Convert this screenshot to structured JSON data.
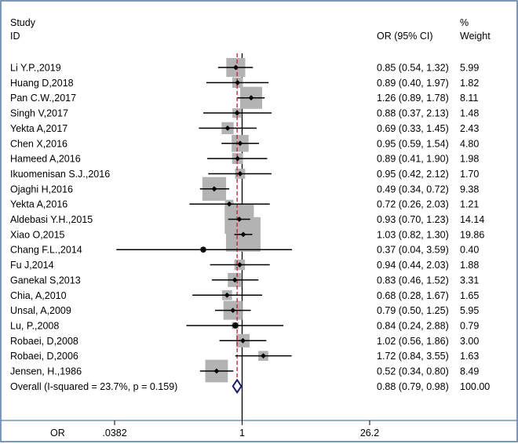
{
  "chart_data": {
    "type": "forest",
    "columns": {
      "study_top": "Study",
      "study_bottom": "ID",
      "effect": "OR (95% CI)",
      "weight_top": "%",
      "weight_bottom": "Weight"
    },
    "studies": [
      {
        "id": "Li Y.P.,2019",
        "or": 0.85,
        "lo": 0.54,
        "hi": 1.32,
        "ci_text": "0.85 (0.54, 1.32)",
        "weight": 5.99,
        "weight_text": "5.99"
      },
      {
        "id": "Huang D,2018",
        "or": 0.89,
        "lo": 0.4,
        "hi": 1.97,
        "ci_text": "0.89 (0.40, 1.97)",
        "weight": 1.82,
        "weight_text": "1.82"
      },
      {
        "id": "Pan C.W.,2017",
        "or": 1.26,
        "lo": 0.89,
        "hi": 1.78,
        "ci_text": "1.26 (0.89, 1.78)",
        "weight": 8.11,
        "weight_text": "8.11"
      },
      {
        "id": "Singh V,2017",
        "or": 0.88,
        "lo": 0.37,
        "hi": 2.13,
        "ci_text": "0.88 (0.37, 2.13)",
        "weight": 1.48,
        "weight_text": "1.48"
      },
      {
        "id": "Yekta A,2017",
        "or": 0.69,
        "lo": 0.33,
        "hi": 1.45,
        "ci_text": "0.69 (0.33, 1.45)",
        "weight": 2.43,
        "weight_text": "2.43"
      },
      {
        "id": "Chen X,2016",
        "or": 0.95,
        "lo": 0.59,
        "hi": 1.54,
        "ci_text": "0.95 (0.59, 1.54)",
        "weight": 4.8,
        "weight_text": "4.80"
      },
      {
        "id": "Hameed A,2016",
        "or": 0.89,
        "lo": 0.41,
        "hi": 1.9,
        "ci_text": "0.89 (0.41, 1.90)",
        "weight": 1.98,
        "weight_text": "1.98"
      },
      {
        "id": "Ikuomenisan S.J.,2016",
        "or": 0.95,
        "lo": 0.42,
        "hi": 2.12,
        "ci_text": "0.95 (0.42, 2.12)",
        "weight": 1.7,
        "weight_text": "1.70"
      },
      {
        "id": "Ojaghi H,2016",
        "or": 0.49,
        "lo": 0.34,
        "hi": 0.72,
        "ci_text": "0.49 (0.34, 0.72)",
        "weight": 9.38,
        "weight_text": "9.38"
      },
      {
        "id": "Yekta A,2016",
        "or": 0.72,
        "lo": 0.26,
        "hi": 2.03,
        "ci_text": "0.72 (0.26, 2.03)",
        "weight": 1.21,
        "weight_text": "1.21"
      },
      {
        "id": "Aldebasi Y.H.,2015",
        "or": 0.93,
        "lo": 0.7,
        "hi": 1.23,
        "ci_text": "0.93 (0.70, 1.23)",
        "weight": 14.14,
        "weight_text": "14.14"
      },
      {
        "id": "Xiao O,2015",
        "or": 1.03,
        "lo": 0.82,
        "hi": 1.3,
        "ci_text": "1.03 (0.82, 1.30)",
        "weight": 19.86,
        "weight_text": "19.86"
      },
      {
        "id": "Chang F.L.,2014",
        "or": 0.37,
        "lo": 0.04,
        "hi": 3.59,
        "ci_text": "0.37 (0.04, 3.59)",
        "weight": 0.4,
        "weight_text": "0.40"
      },
      {
        "id": "Fu J,2014",
        "or": 0.94,
        "lo": 0.44,
        "hi": 2.03,
        "ci_text": "0.94 (0.44, 2.03)",
        "weight": 1.88,
        "weight_text": "1.88"
      },
      {
        "id": "Ganekal S,2013",
        "or": 0.83,
        "lo": 0.46,
        "hi": 1.52,
        "ci_text": "0.83 (0.46, 1.52)",
        "weight": 3.31,
        "weight_text": "3.31"
      },
      {
        "id": "Chia, A,2010",
        "or": 0.68,
        "lo": 0.28,
        "hi": 1.67,
        "ci_text": "0.68 (0.28, 1.67)",
        "weight": 1.65,
        "weight_text": "1.65"
      },
      {
        "id": "Unsal, A,2009",
        "or": 0.79,
        "lo": 0.5,
        "hi": 1.25,
        "ci_text": "0.79 (0.50, 1.25)",
        "weight": 5.95,
        "weight_text": "5.95"
      },
      {
        "id": "Lu, P.,2008",
        "or": 0.84,
        "lo": 0.24,
        "hi": 2.88,
        "ci_text": "0.84 (0.24, 2.88)",
        "weight": 0.79,
        "weight_text": "0.79"
      },
      {
        "id": "Robaei, D,2008",
        "or": 1.02,
        "lo": 0.56,
        "hi": 1.86,
        "ci_text": "1.02 (0.56, 1.86)",
        "weight": 3.0,
        "weight_text": "3.00"
      },
      {
        "id": "Robaei, D,2006",
        "or": 1.72,
        "lo": 0.84,
        "hi": 3.55,
        "ci_text": "1.72 (0.84, 3.55)",
        "weight": 1.63,
        "weight_text": "1.63"
      },
      {
        "id": "Jensen, H.,1986",
        "or": 0.52,
        "lo": 0.34,
        "hi": 0.8,
        "ci_text": "0.52 (0.34, 0.80)",
        "weight": 8.49,
        "weight_text": "8.49"
      }
    ],
    "overall": {
      "label": "Overall  (I-squared = 23.7%, p = 0.159)",
      "or": 0.88,
      "lo": 0.79,
      "hi": 0.98,
      "ci_text": "0.88 (0.79, 0.98)",
      "weight_text": "100.00"
    },
    "x_axis": {
      "label": "OR",
      "scale": "log",
      "min": 0.0382,
      "max": 26.2,
      "ticks": [
        {
          "value": 0.0382,
          "label": ".0382"
        },
        {
          "value": 1,
          "label": "1"
        },
        {
          "value": 26.2,
          "label": "26.2"
        }
      ]
    },
    "reference_line": 1,
    "arrow_clipped_study": "Chang F.L.,2014",
    "colors": {
      "frame": "#5b7fa6",
      "box": "#b3b3b3",
      "overall_diamond": "#1c1c6b",
      "overall_line": "#b0213a",
      "null_line": "#000000"
    }
  }
}
